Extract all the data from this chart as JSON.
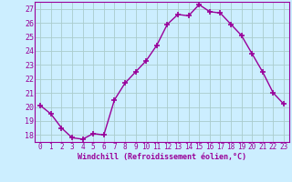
{
  "x": [
    0,
    1,
    2,
    3,
    4,
    5,
    6,
    7,
    8,
    9,
    10,
    11,
    12,
    13,
    14,
    15,
    16,
    17,
    18,
    19,
    20,
    21,
    22,
    23
  ],
  "y": [
    20.1,
    19.5,
    18.5,
    17.8,
    17.7,
    18.1,
    18.0,
    20.5,
    21.7,
    22.5,
    23.3,
    24.4,
    25.9,
    26.6,
    26.5,
    27.3,
    26.8,
    26.7,
    25.9,
    25.1,
    23.8,
    22.5,
    21.0,
    20.2
  ],
  "line_color": "#990099",
  "marker": "+",
  "marker_size": 4,
  "linewidth": 1.0,
  "xlabel": "Windchill (Refroidissement éolien,°C)",
  "ylabel_ticks": [
    18,
    19,
    20,
    21,
    22,
    23,
    24,
    25,
    26,
    27
  ],
  "ylim": [
    17.5,
    27.5
  ],
  "xlim": [
    -0.5,
    23.5
  ],
  "xticks": [
    0,
    1,
    2,
    3,
    4,
    5,
    6,
    7,
    8,
    9,
    10,
    11,
    12,
    13,
    14,
    15,
    16,
    17,
    18,
    19,
    20,
    21,
    22,
    23
  ],
  "xtick_labels": [
    "0",
    "1",
    "2",
    "3",
    "4",
    "5",
    "6",
    "7",
    "8",
    "9",
    "10",
    "11",
    "12",
    "13",
    "14",
    "15",
    "16",
    "17",
    "18",
    "19",
    "20",
    "21",
    "22",
    "23"
  ],
  "bg_color": "#cceeff",
  "grid_color": "#aacccc",
  "xlabel_color": "#990099",
  "tick_color": "#990099",
  "xlabel_fontsize": 6.0,
  "tick_fontsize": 5.5,
  "ytick_fontsize": 6.0
}
